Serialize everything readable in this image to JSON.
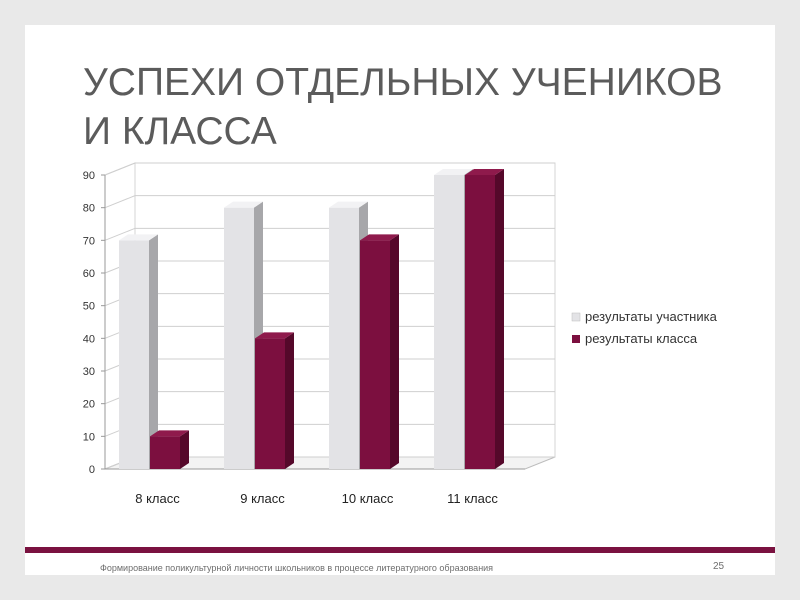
{
  "slide": {
    "title_lines": [
      "УСПЕХИ ОТДЕЛЬНЫХ УЧЕНИКОВ",
      "И КЛАССА"
    ],
    "footer": "Формирование поликультурной личности школьников в процессе литературного образования",
    "page_number": "25"
  },
  "colors": {
    "participant": "#e3e3e6",
    "participant_side": "#a7a7aa",
    "class": "#7c0f3f",
    "class_side": "#55082a",
    "accent_band": "#7a1240"
  },
  "chart_data": {
    "type": "bar",
    "categories": [
      "8 класс",
      "9 класс",
      "10 класс",
      "11 класс"
    ],
    "series": [
      {
        "name": "результаты участника",
        "values": [
          70,
          80,
          80,
          90
        ]
      },
      {
        "name": "результаты класса",
        "values": [
          10,
          40,
          70,
          90
        ]
      }
    ],
    "ylim": [
      0,
      90
    ],
    "yticks": [
      0,
      10,
      20,
      30,
      40,
      50,
      60,
      70,
      80,
      90
    ],
    "grid": true,
    "legend_position": "right",
    "style": "3d-column"
  }
}
